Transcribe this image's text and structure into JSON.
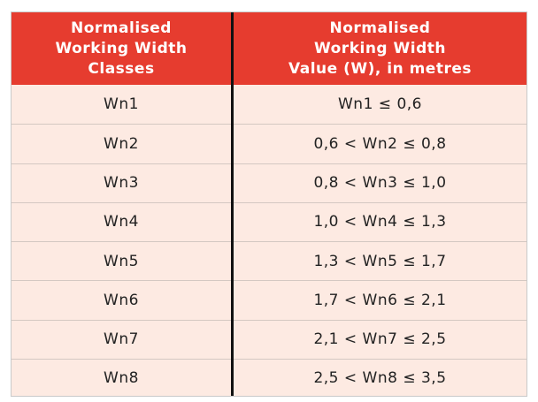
{
  "table": {
    "header": [
      [
        "Normalised",
        "Working Width",
        "Classes"
      ],
      [
        "Normalised",
        "Working Width",
        "Value (W), in metres"
      ]
    ],
    "rows": [
      [
        "Wn1",
        "Wn1 ≤ 0,6"
      ],
      [
        "Wn2",
        "0,6 < Wn2 ≤ 0,8"
      ],
      [
        "Wn3",
        "0,8 < Wn3 ≤ 1,0"
      ],
      [
        "Wn4",
        "1,0 < Wn4 ≤ 1,3"
      ],
      [
        "Wn5",
        "1,3 < Wn5 ≤ 1,7"
      ],
      [
        "Wn6",
        "1,7 < Wn6 ≤ 2,1"
      ],
      [
        "Wn7",
        "2,1 < Wn7 ≤ 2,5"
      ],
      [
        "Wn8",
        "2,5 < Wn8 ≤ 3,5"
      ]
    ]
  }
}
